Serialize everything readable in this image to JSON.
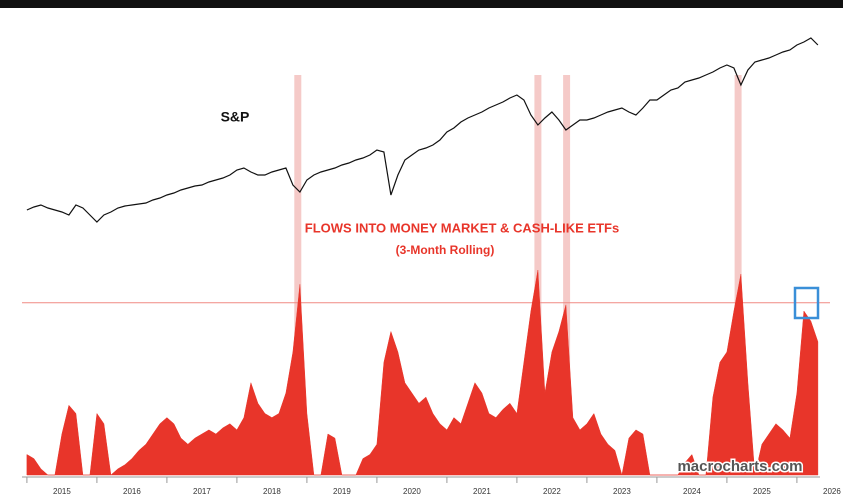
{
  "chart_data": {
    "type": "line",
    "x": [
      2015.0,
      2015.1,
      2015.2,
      2015.3,
      2015.4,
      2015.5,
      2015.6,
      2015.7,
      2015.8,
      2015.9,
      2016.0,
      2016.1,
      2016.2,
      2016.3,
      2016.4,
      2016.5,
      2016.6,
      2016.7,
      2016.8,
      2016.9,
      2017.0,
      2017.1,
      2017.2,
      2017.3,
      2017.4,
      2017.5,
      2017.6,
      2017.7,
      2017.8,
      2017.9,
      2018.0,
      2018.1,
      2018.2,
      2018.3,
      2018.4,
      2018.5,
      2018.6,
      2018.7,
      2018.8,
      2018.9,
      2019.0,
      2019.1,
      2019.2,
      2019.3,
      2019.4,
      2019.5,
      2019.6,
      2019.7,
      2019.8,
      2019.9,
      2020.0,
      2020.1,
      2020.2,
      2020.3,
      2020.4,
      2020.5,
      2020.6,
      2020.7,
      2020.8,
      2020.9,
      2021.0,
      2021.1,
      2021.2,
      2021.3,
      2021.4,
      2021.5,
      2021.6,
      2021.7,
      2021.8,
      2021.9,
      2022.0,
      2022.1,
      2022.2,
      2022.3,
      2022.4,
      2022.5,
      2022.6,
      2022.7,
      2022.8,
      2022.9,
      2023.0,
      2023.1,
      2023.2,
      2023.3,
      2023.4,
      2023.5,
      2023.6,
      2023.7,
      2023.8,
      2023.9,
      2024.0,
      2024.1,
      2024.2,
      2024.3,
      2024.4,
      2024.5,
      2024.6,
      2024.7,
      2024.8,
      2024.9,
      2025.0,
      2025.1,
      2025.2,
      2025.3,
      2025.4,
      2025.5,
      2025.6,
      2025.7,
      2025.8,
      2025.9,
      2026.0,
      2026.1,
      2026.2,
      2026.3
    ],
    "xlim": [
      2014.93,
      2026.33
    ],
    "xticks": [
      2015,
      2016,
      2017,
      2018,
      2019,
      2020,
      2021,
      2022,
      2023,
      2024,
      2025,
      2026
    ],
    "series": [
      {
        "name": "S&P",
        "color": "#111111",
        "axis": "y2",
        "values": [
          40,
          43,
          45,
          42,
          40,
          38,
          35,
          45,
          42,
          35,
          28,
          35,
          38,
          42,
          44,
          45,
          46,
          47,
          50,
          52,
          55,
          57,
          60,
          62,
          64,
          65,
          68,
          70,
          72,
          75,
          80,
          82,
          78,
          75,
          75,
          78,
          80,
          82,
          65,
          58,
          70,
          75,
          78,
          80,
          82,
          85,
          87,
          90,
          92,
          95,
          100,
          98,
          55,
          75,
          90,
          95,
          100,
          102,
          105,
          110,
          118,
          122,
          128,
          132,
          135,
          138,
          142,
          145,
          148,
          152,
          155,
          150,
          135,
          125,
          132,
          138,
          130,
          120,
          125,
          130,
          130,
          132,
          135,
          138,
          140,
          142,
          138,
          135,
          142,
          150,
          150,
          155,
          160,
          162,
          168,
          170,
          172,
          175,
          178,
          182,
          185,
          182,
          165,
          180,
          188,
          190,
          192,
          195,
          198,
          200,
          205,
          208,
          212,
          205
        ]
      },
      {
        "name": "FLOWS INTO MONEY MARKET & CASH-LIKE ETFs",
        "kind": "area",
        "color": "#e8352a",
        "values": [
          10,
          8,
          3,
          0,
          0,
          20,
          34,
          30,
          0,
          0,
          30,
          25,
          0,
          3,
          5,
          8,
          12,
          15,
          20,
          25,
          28,
          25,
          18,
          15,
          18,
          20,
          22,
          20,
          23,
          25,
          22,
          28,
          45,
          35,
          30,
          28,
          30,
          40,
          60,
          93,
          30,
          0,
          0,
          20,
          18,
          0,
          0,
          0,
          8,
          10,
          15,
          55,
          70,
          60,
          45,
          40,
          35,
          38,
          30,
          25,
          22,
          28,
          25,
          35,
          45,
          40,
          30,
          28,
          32,
          35,
          30,
          55,
          80,
          100,
          40,
          60,
          70,
          83,
          28,
          22,
          25,
          30,
          20,
          15,
          12,
          0,
          18,
          22,
          20,
          0,
          0,
          0,
          0,
          0,
          6,
          10,
          0,
          0,
          38,
          55,
          60,
          80,
          98,
          45,
          0,
          15,
          20,
          25,
          22,
          18,
          40,
          80,
          75,
          65
        ]
      }
    ],
    "ylim": [
      0,
      100
    ],
    "y2lim": [
      0,
      220
    ],
    "threshold": 84,
    "highlights": [
      2018.87,
      2022.3,
      2022.71,
      2025.16
    ],
    "subtitle": "(3-Month Rolling)",
    "source": "macrocharts.com"
  }
}
